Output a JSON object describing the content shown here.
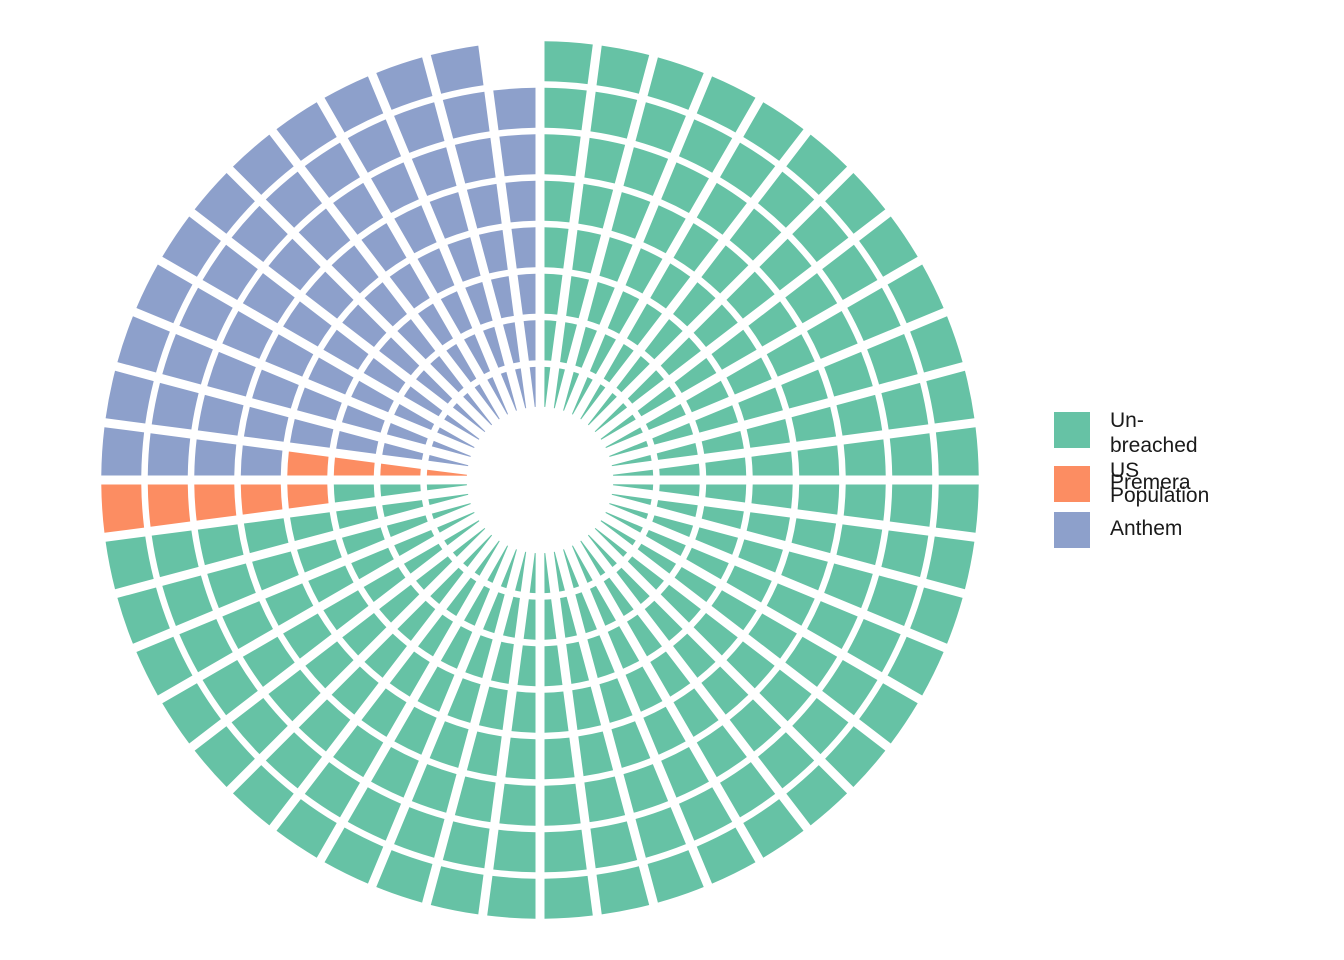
{
  "chart_data": {
    "type": "waffle-polar",
    "rings": 8,
    "sectors": 48,
    "legend": [
      {
        "key": "unbreached",
        "label": "Un-breached\nUS Population",
        "color": "#66C2A5"
      },
      {
        "key": "premera",
        "label": "Premera",
        "color": "#FC8D62"
      },
      {
        "key": "anthem",
        "label": "Anthem",
        "color": "#8DA0CB"
      }
    ],
    "cells": {
      "anthem": 91,
      "premera": 9,
      "unbreached": 283,
      "empty": 1
    },
    "order": [
      "unbreached",
      "premera",
      "anthem"
    ],
    "legend_position": "right"
  }
}
